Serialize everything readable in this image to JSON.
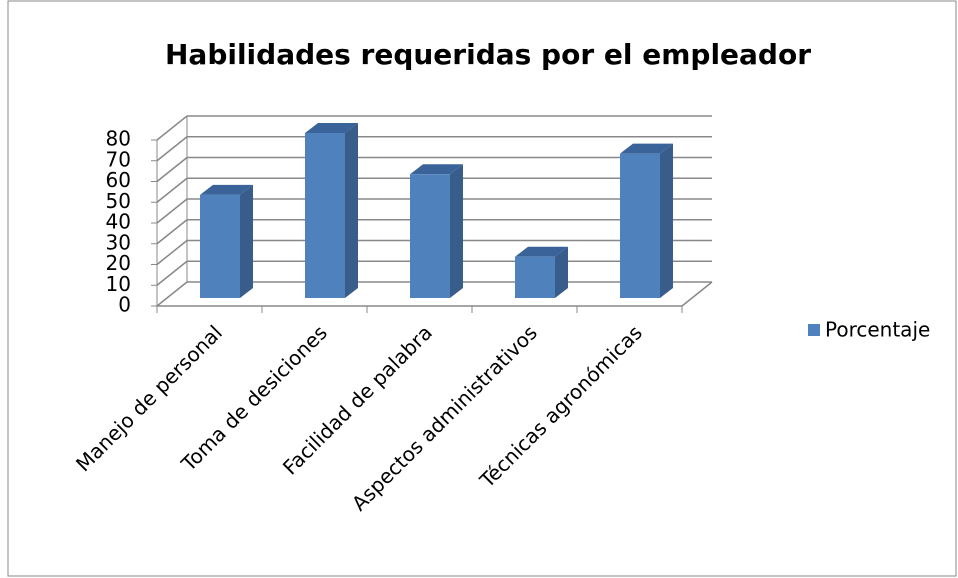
{
  "chart_data": {
    "type": "bar3d",
    "title": "Habilidades requeridas por el empleador",
    "categories": [
      "Manejo de personal",
      "Toma de desiciones",
      "Facilidad de palabra",
      "Aspectos administrativos",
      "Técnicas agronómicas"
    ],
    "series": [
      {
        "name": "Porcentaje",
        "color": "#4f81bd",
        "values": [
          50,
          80,
          60,
          20,
          70
        ]
      }
    ],
    "ylim": [
      0,
      80
    ],
    "yticks": [
      0,
      10,
      20,
      30,
      40,
      50,
      60,
      70,
      80
    ],
    "grid": true,
    "legend": "right"
  }
}
